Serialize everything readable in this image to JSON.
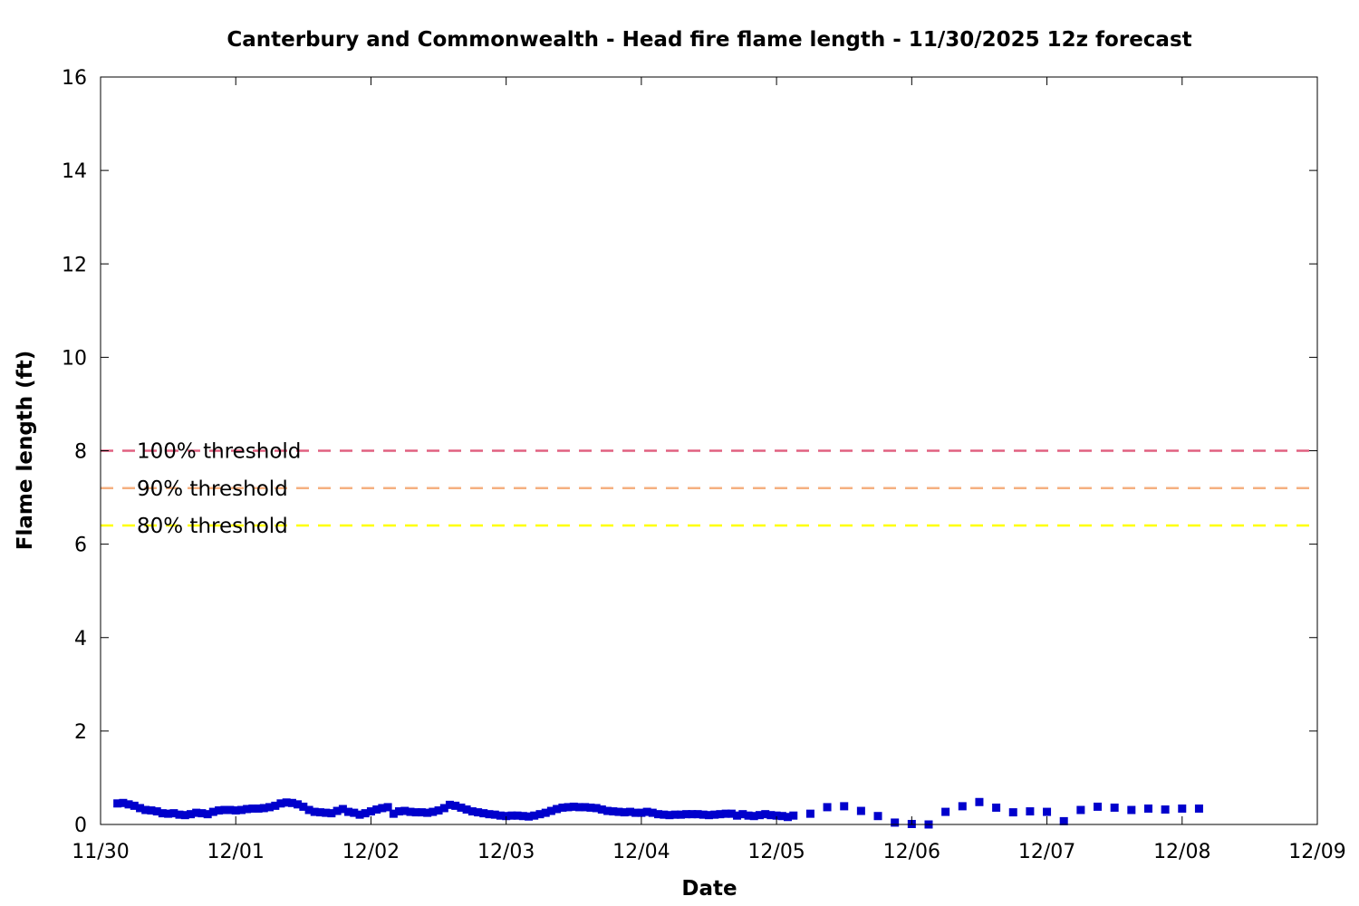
{
  "chart_data": {
    "type": "scatter",
    "title": "Canterbury and Commonwealth - Head fire flame length - 11/30/2025 12z forecast",
    "xlabel": "Date",
    "ylabel": "Flame length (ft)",
    "x_range_days": [
      0,
      9
    ],
    "x_ticks": [
      "11/30",
      "12/01",
      "12/02",
      "12/03",
      "12/04",
      "12/05",
      "12/06",
      "12/07",
      "12/08",
      "12/09"
    ],
    "ylim": [
      0,
      16
    ],
    "y_ticks": [
      "0",
      "2",
      "4",
      "6",
      "8",
      "10",
      "12",
      "14",
      "16"
    ],
    "grid": false,
    "thresholds": [
      {
        "label": "100% threshold",
        "value": 8.0,
        "color": "#e06080"
      },
      {
        "label": "90% threshold",
        "value": 7.2,
        "color": "#f5b080"
      },
      {
        "label": "80% threshold",
        "value": 6.4,
        "color": "#ffff00"
      }
    ],
    "series": [
      {
        "color": "#0000cc",
        "points": [
          [
            0.125,
            0.45
          ],
          [
            0.167,
            0.46
          ],
          [
            0.208,
            0.43
          ],
          [
            0.25,
            0.4
          ],
          [
            0.292,
            0.35
          ],
          [
            0.333,
            0.31
          ],
          [
            0.375,
            0.3
          ],
          [
            0.417,
            0.28
          ],
          [
            0.458,
            0.24
          ],
          [
            0.5,
            0.23
          ],
          [
            0.542,
            0.24
          ],
          [
            0.583,
            0.21
          ],
          [
            0.625,
            0.2
          ],
          [
            0.667,
            0.22
          ],
          [
            0.708,
            0.25
          ],
          [
            0.75,
            0.24
          ],
          [
            0.792,
            0.22
          ],
          [
            0.833,
            0.27
          ],
          [
            0.875,
            0.3
          ],
          [
            0.917,
            0.31
          ],
          [
            0.958,
            0.31
          ],
          [
            1.0,
            0.3
          ],
          [
            1.042,
            0.31
          ],
          [
            1.083,
            0.33
          ],
          [
            1.125,
            0.34
          ],
          [
            1.167,
            0.34
          ],
          [
            1.208,
            0.35
          ],
          [
            1.25,
            0.37
          ],
          [
            1.292,
            0.4
          ],
          [
            1.333,
            0.45
          ],
          [
            1.375,
            0.47
          ],
          [
            1.417,
            0.46
          ],
          [
            1.458,
            0.43
          ],
          [
            1.5,
            0.38
          ],
          [
            1.542,
            0.31
          ],
          [
            1.583,
            0.27
          ],
          [
            1.625,
            0.26
          ],
          [
            1.667,
            0.25
          ],
          [
            1.708,
            0.24
          ],
          [
            1.75,
            0.29
          ],
          [
            1.792,
            0.33
          ],
          [
            1.833,
            0.27
          ],
          [
            1.875,
            0.25
          ],
          [
            1.917,
            0.21
          ],
          [
            1.958,
            0.24
          ],
          [
            2.0,
            0.28
          ],
          [
            2.042,
            0.32
          ],
          [
            2.083,
            0.35
          ],
          [
            2.125,
            0.37
          ],
          [
            2.167,
            0.23
          ],
          [
            2.208,
            0.28
          ],
          [
            2.25,
            0.29
          ],
          [
            2.292,
            0.27
          ],
          [
            2.333,
            0.26
          ],
          [
            2.375,
            0.26
          ],
          [
            2.417,
            0.25
          ],
          [
            2.458,
            0.27
          ],
          [
            2.5,
            0.3
          ],
          [
            2.542,
            0.35
          ],
          [
            2.583,
            0.42
          ],
          [
            2.625,
            0.4
          ],
          [
            2.667,
            0.36
          ],
          [
            2.708,
            0.32
          ],
          [
            2.75,
            0.28
          ],
          [
            2.792,
            0.26
          ],
          [
            2.833,
            0.24
          ],
          [
            2.875,
            0.22
          ],
          [
            2.917,
            0.21
          ],
          [
            2.958,
            0.19
          ],
          [
            3.0,
            0.18
          ],
          [
            3.042,
            0.19
          ],
          [
            3.083,
            0.19
          ],
          [
            3.125,
            0.18
          ],
          [
            3.167,
            0.17
          ],
          [
            3.208,
            0.19
          ],
          [
            3.25,
            0.22
          ],
          [
            3.292,
            0.25
          ],
          [
            3.333,
            0.29
          ],
          [
            3.375,
            0.33
          ],
          [
            3.417,
            0.36
          ],
          [
            3.458,
            0.37
          ],
          [
            3.5,
            0.38
          ],
          [
            3.542,
            0.37
          ],
          [
            3.583,
            0.37
          ],
          [
            3.625,
            0.36
          ],
          [
            3.667,
            0.35
          ],
          [
            3.708,
            0.32
          ],
          [
            3.75,
            0.29
          ],
          [
            3.792,
            0.28
          ],
          [
            3.833,
            0.27
          ],
          [
            3.875,
            0.26
          ],
          [
            3.917,
            0.27
          ],
          [
            3.958,
            0.25
          ],
          [
            4.0,
            0.25
          ],
          [
            4.042,
            0.27
          ],
          [
            4.083,
            0.25
          ],
          [
            4.125,
            0.22
          ],
          [
            4.167,
            0.21
          ],
          [
            4.208,
            0.2
          ],
          [
            4.25,
            0.21
          ],
          [
            4.292,
            0.21
          ],
          [
            4.333,
            0.22
          ],
          [
            4.375,
            0.22
          ],
          [
            4.417,
            0.22
          ],
          [
            4.458,
            0.21
          ],
          [
            4.5,
            0.2
          ],
          [
            4.542,
            0.21
          ],
          [
            4.583,
            0.22
          ],
          [
            4.625,
            0.23
          ],
          [
            4.667,
            0.23
          ],
          [
            4.708,
            0.19
          ],
          [
            4.75,
            0.22
          ],
          [
            4.792,
            0.19
          ],
          [
            4.833,
            0.18
          ],
          [
            4.875,
            0.2
          ],
          [
            4.917,
            0.22
          ],
          [
            4.958,
            0.2
          ],
          [
            5.0,
            0.19
          ],
          [
            5.042,
            0.18
          ],
          [
            5.083,
            0.16
          ],
          [
            5.125,
            0.19
          ],
          [
            5.25,
            0.23
          ],
          [
            5.375,
            0.37
          ],
          [
            5.5,
            0.39
          ],
          [
            5.625,
            0.29
          ],
          [
            5.75,
            0.18
          ],
          [
            5.875,
            0.04
          ],
          [
            6.0,
            0.01
          ],
          [
            6.125,
            0.0
          ],
          [
            6.25,
            0.27
          ],
          [
            6.375,
            0.39
          ],
          [
            6.5,
            0.48
          ],
          [
            6.625,
            0.36
          ],
          [
            6.75,
            0.26
          ],
          [
            6.875,
            0.28
          ],
          [
            7.0,
            0.27
          ],
          [
            7.125,
            0.07
          ],
          [
            7.25,
            0.31
          ],
          [
            7.375,
            0.38
          ],
          [
            7.5,
            0.36
          ],
          [
            7.625,
            0.31
          ],
          [
            7.75,
            0.34
          ],
          [
            7.875,
            0.32
          ],
          [
            8.0,
            0.34
          ],
          [
            8.125,
            0.34
          ]
        ]
      }
    ]
  }
}
